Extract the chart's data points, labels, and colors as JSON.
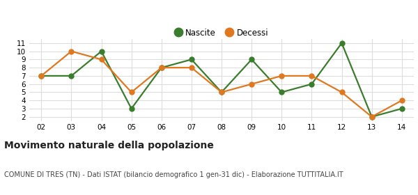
{
  "years": [
    "02",
    "03",
    "04",
    "05",
    "06",
    "07",
    "08",
    "09",
    "10",
    "11",
    "12",
    "13",
    "14"
  ],
  "nascite": [
    7,
    7,
    10,
    3,
    8,
    9,
    5,
    9,
    5,
    6,
    11,
    2,
    3
  ],
  "decessi": [
    7,
    10,
    9,
    5,
    8,
    8,
    5,
    6,
    7,
    7,
    5,
    2,
    4
  ],
  "nascite_color": "#3a7d2c",
  "decessi_color": "#e07820",
  "background_color": "#ffffff",
  "plot_bg_color": "#ffffff",
  "grid_color": "#dddddd",
  "ylim_min": 1.5,
  "ylim_max": 11.5,
  "yticks": [
    2,
    3,
    4,
    5,
    6,
    7,
    8,
    9,
    10,
    11
  ],
  "legend_nascite": "Nascite",
  "legend_decessi": "Decessi",
  "title": "Movimento naturale della popolazione",
  "subtitle": "COMUNE DI TRES (TN) - Dati ISTAT (bilancio demografico 1 gen-31 dic) - Elaborazione TUTTITALIA.IT",
  "title_fontsize": 10,
  "subtitle_fontsize": 7,
  "marker_size": 5,
  "line_width": 1.6
}
